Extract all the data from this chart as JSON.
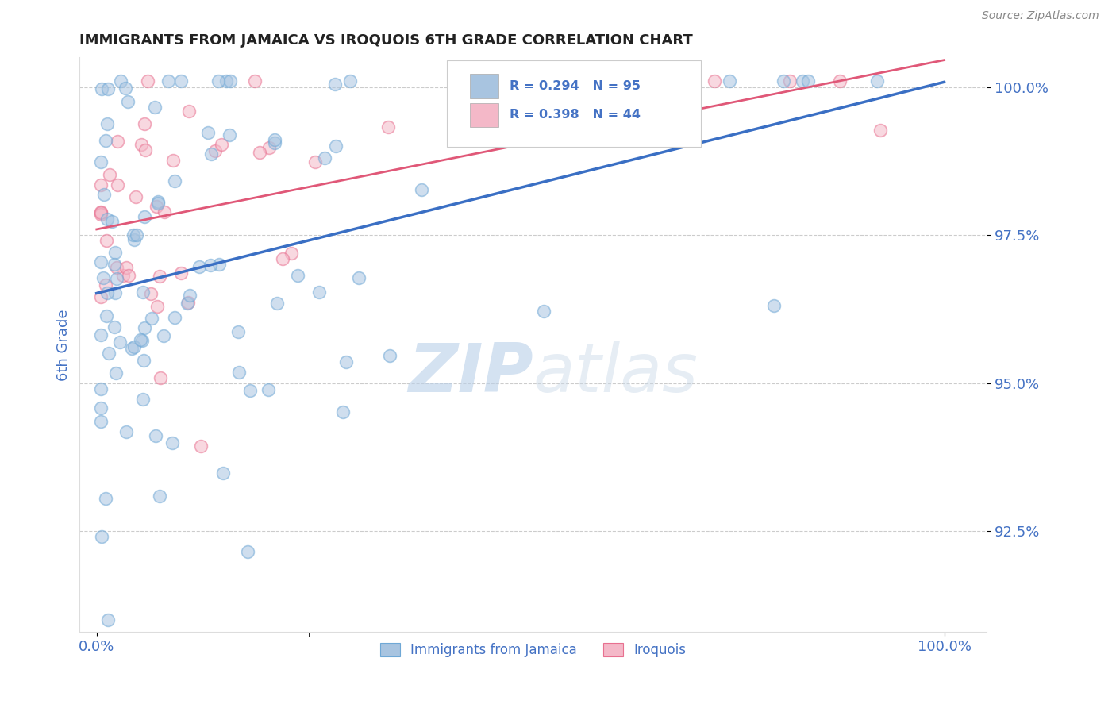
{
  "title": "IMMIGRANTS FROM JAMAICA VS IROQUOIS 6TH GRADE CORRELATION CHART",
  "source_text": "Source: ZipAtlas.com",
  "ylabel": "6th Grade",
  "blue_label": "Immigrants from Jamaica",
  "pink_label": "Iroquois",
  "blue_color": "#a8c4e0",
  "blue_edge_color": "#6fa8d6",
  "pink_color": "#f4b8c8",
  "pink_edge_color": "#e87090",
  "blue_line_color": "#3a6fc4",
  "pink_line_color": "#e05878",
  "blue_R": 0.294,
  "blue_N": 95,
  "pink_R": 0.398,
  "pink_N": 44,
  "watermark_zip": "ZIP",
  "watermark_atlas": "atlas",
  "background_color": "#ffffff",
  "grid_color": "#cccccc",
  "axis_label_color": "#4472c4",
  "tick_label_color": "#4472c4",
  "title_color": "#222222",
  "source_color": "#888888",
  "legend_text_color": "#222222",
  "legend_R_color": "#4472c4",
  "legend_N_color": "#e05030",
  "ylim_low": 0.908,
  "ylim_high": 1.005,
  "yticks": [
    0.925,
    0.95,
    0.975,
    1.0
  ],
  "scatter_size": 130,
  "scatter_alpha": 0.55,
  "scatter_lw": 1.2
}
